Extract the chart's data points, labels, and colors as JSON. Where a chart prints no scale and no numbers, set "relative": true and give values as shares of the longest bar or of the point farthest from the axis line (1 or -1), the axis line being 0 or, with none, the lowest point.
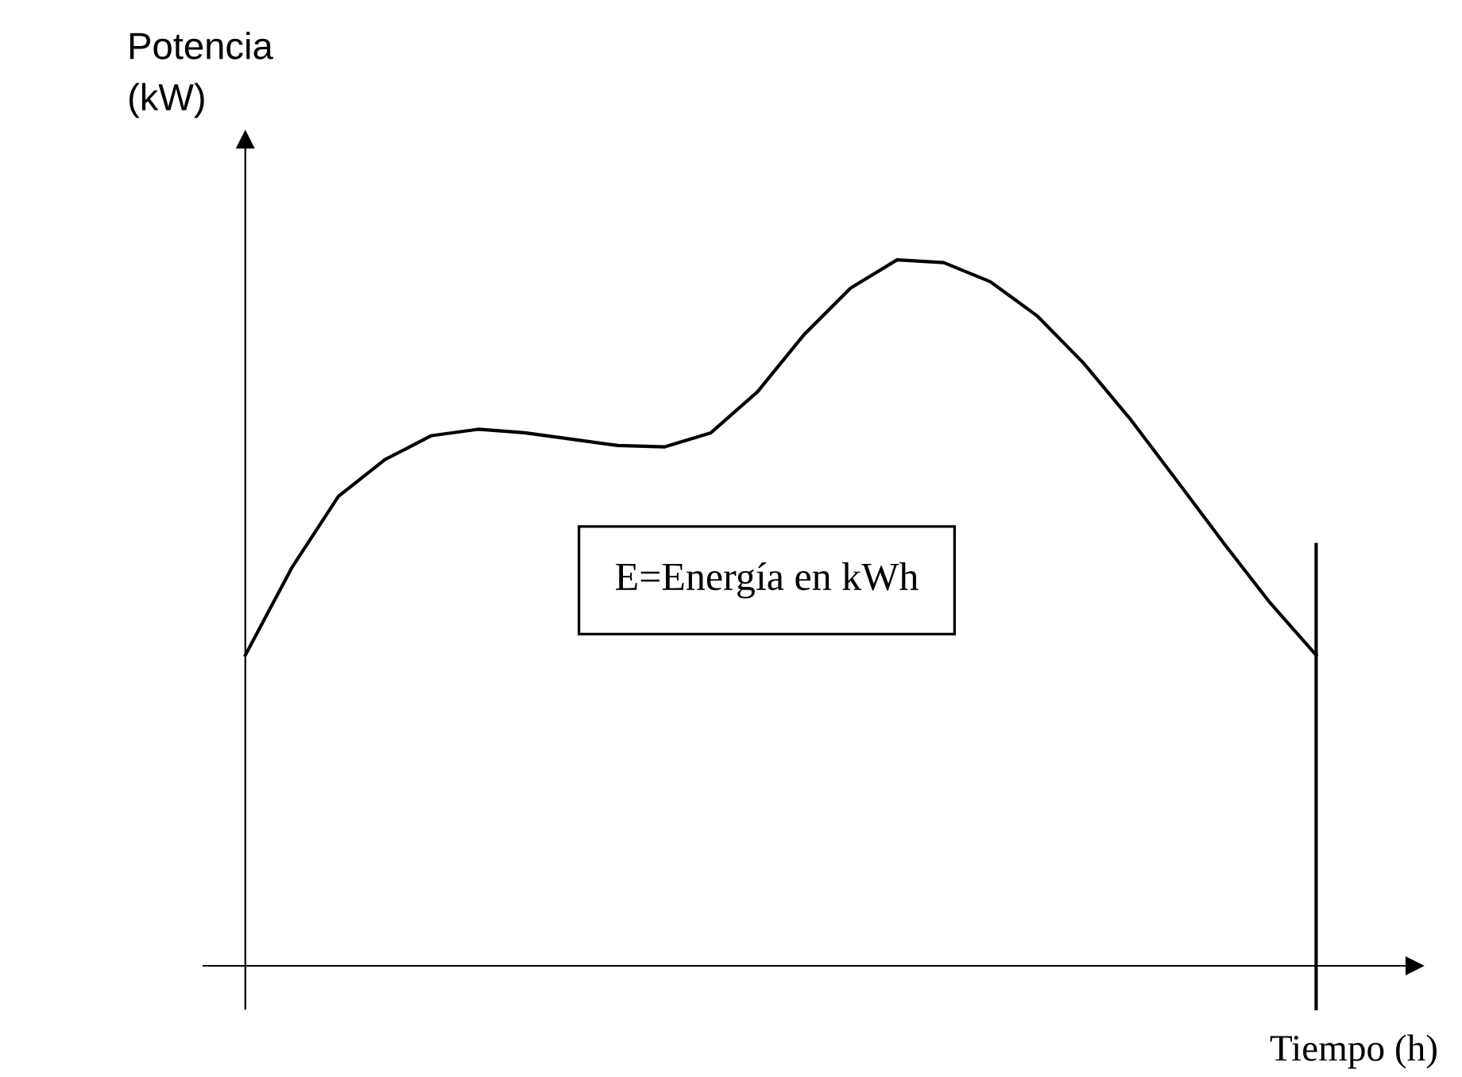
{
  "chart_data": {
    "type": "line",
    "relative": true,
    "xlabel": "Tiempo (h)",
    "ylabel": "Potencia\n(kW)",
    "annotations": [
      "E=Energía en kWh"
    ],
    "categories": [
      null,
      null,
      null,
      null,
      null,
      null,
      null,
      null,
      null,
      null,
      null,
      null,
      null,
      null,
      null,
      null,
      null,
      null,
      null,
      null,
      null,
      null,
      null,
      null
    ],
    "series": [
      {
        "color": "#000000",
        "values": [
          0.44,
          0.564,
          0.665,
          0.717,
          0.751,
          0.76,
          0.755,
          0.746,
          0.737,
          0.735,
          0.755,
          0.813,
          0.894,
          0.96,
          1,
          0.996,
          0.969,
          0.921,
          0.854,
          0.775,
          0.688,
          0.6,
          0.515,
          0.44
        ]
      }
    ],
    "marker": "none",
    "line_style": "solid"
  }
}
